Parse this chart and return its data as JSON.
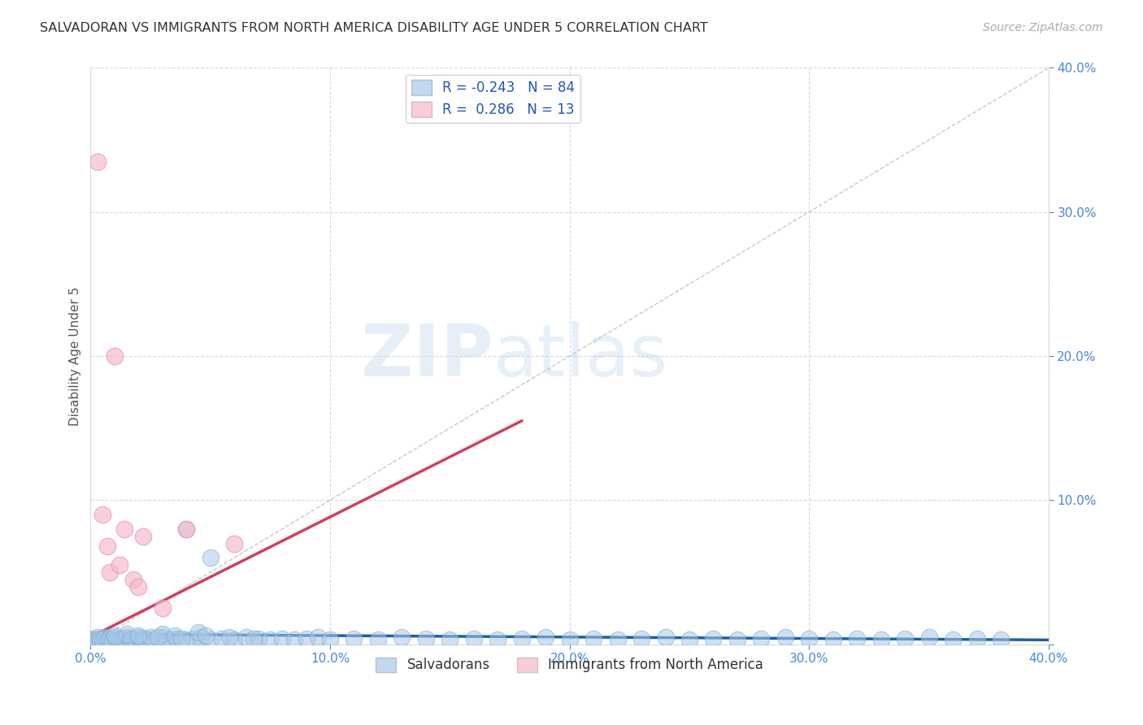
{
  "title": "SALVADORAN VS IMMIGRANTS FROM NORTH AMERICA DISABILITY AGE UNDER 5 CORRELATION CHART",
  "source": "Source: ZipAtlas.com",
  "ylabel": "Disability Age Under 5",
  "xlim": [
    0.0,
    0.4
  ],
  "ylim": [
    0.0,
    0.4
  ],
  "xticks": [
    0.0,
    0.1,
    0.2,
    0.3,
    0.4
  ],
  "yticks": [
    0.0,
    0.1,
    0.2,
    0.3,
    0.4
  ],
  "xticklabels": [
    "0.0%",
    "10.0%",
    "20.0%",
    "30.0%",
    "40.0%"
  ],
  "yticklabels": [
    "",
    "10.0%",
    "20.0%",
    "30.0%",
    "40.0%"
  ],
  "blue_color": "#a8c8e8",
  "blue_edge_color": "#7aaad0",
  "pink_color": "#f4b8c8",
  "pink_edge_color": "#e888a8",
  "blue_line_color": "#1a5faa",
  "pink_line_color": "#d04060",
  "diagonal_color": "#c8c8c8",
  "grid_color": "#d8d8d8",
  "legend_blue_R": "-0.243",
  "legend_blue_N": "84",
  "legend_pink_R": "0.286",
  "legend_pink_N": "13",
  "legend_label1": "Salvadorans",
  "legend_label2": "Immigrants from North America",
  "watermark_zip": "ZIP",
  "watermark_atlas": "atlas",
  "blue_scatter_x": [
    0.001,
    0.002,
    0.003,
    0.004,
    0.005,
    0.006,
    0.007,
    0.008,
    0.009,
    0.01,
    0.011,
    0.012,
    0.013,
    0.014,
    0.015,
    0.016,
    0.017,
    0.018,
    0.019,
    0.02,
    0.021,
    0.022,
    0.023,
    0.025,
    0.027,
    0.03,
    0.033,
    0.036,
    0.04,
    0.043,
    0.046,
    0.05,
    0.055,
    0.06,
    0.065,
    0.07,
    0.075,
    0.08,
    0.085,
    0.09,
    0.095,
    0.1,
    0.11,
    0.12,
    0.13,
    0.14,
    0.15,
    0.16,
    0.17,
    0.18,
    0.19,
    0.2,
    0.21,
    0.22,
    0.23,
    0.24,
    0.25,
    0.26,
    0.27,
    0.28,
    0.29,
    0.3,
    0.31,
    0.32,
    0.33,
    0.34,
    0.35,
    0.36,
    0.37,
    0.38,
    0.03,
    0.035,
    0.045,
    0.05,
    0.04,
    0.025,
    0.015,
    0.01,
    0.02,
    0.028,
    0.038,
    0.048,
    0.058,
    0.068
  ],
  "blue_scatter_y": [
    0.004,
    0.003,
    0.005,
    0.004,
    0.003,
    0.005,
    0.003,
    0.004,
    0.003,
    0.005,
    0.004,
    0.003,
    0.004,
    0.003,
    0.005,
    0.004,
    0.003,
    0.004,
    0.003,
    0.005,
    0.004,
    0.003,
    0.004,
    0.003,
    0.004,
    0.005,
    0.003,
    0.004,
    0.003,
    0.004,
    0.005,
    0.003,
    0.004,
    0.003,
    0.005,
    0.004,
    0.003,
    0.004,
    0.003,
    0.004,
    0.005,
    0.003,
    0.004,
    0.003,
    0.005,
    0.004,
    0.003,
    0.004,
    0.003,
    0.004,
    0.005,
    0.003,
    0.004,
    0.003,
    0.004,
    0.005,
    0.003,
    0.004,
    0.003,
    0.004,
    0.005,
    0.004,
    0.003,
    0.004,
    0.003,
    0.004,
    0.005,
    0.003,
    0.004,
    0.003,
    0.007,
    0.006,
    0.008,
    0.06,
    0.08,
    0.005,
    0.007,
    0.006,
    0.006,
    0.005,
    0.004,
    0.006,
    0.005,
    0.004
  ],
  "pink_scatter_x": [
    0.003,
    0.005,
    0.007,
    0.008,
    0.01,
    0.012,
    0.014,
    0.018,
    0.02,
    0.022,
    0.03,
    0.04,
    0.06
  ],
  "pink_scatter_y": [
    0.335,
    0.09,
    0.068,
    0.05,
    0.2,
    0.055,
    0.08,
    0.045,
    0.04,
    0.075,
    0.025,
    0.08,
    0.07
  ],
  "blue_trend_x": [
    0.0,
    0.4
  ],
  "blue_trend_y": [
    0.007,
    0.003
  ],
  "pink_trend_x": [
    0.0,
    0.18
  ],
  "pink_trend_y": [
    0.005,
    0.155
  ]
}
